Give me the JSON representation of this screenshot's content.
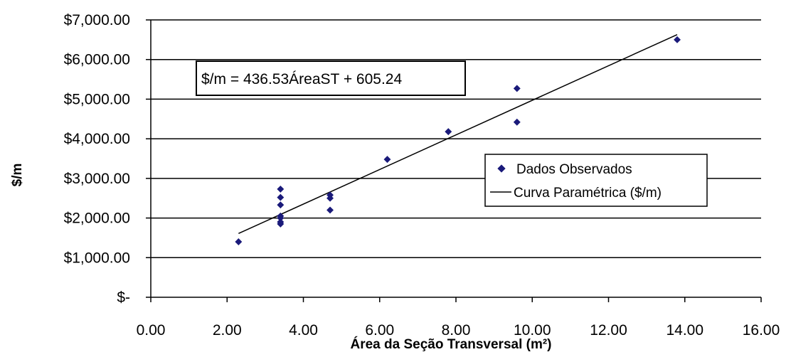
{
  "chart_data": {
    "type": "scatter",
    "title": "",
    "xlabel": "Área da Seção Transversal (m²)",
    "ylabel": "$/m",
    "xlim": [
      0,
      16
    ],
    "ylim": [
      0,
      7000
    ],
    "grid": "horizontal",
    "x_ticks": [
      0,
      2,
      4,
      6,
      8,
      10,
      12,
      14,
      16
    ],
    "x_tick_labels": [
      "0.00",
      "2.00",
      "4.00",
      "6.00",
      "8.00",
      "10.00",
      "12.00",
      "14.00",
      "16.00"
    ],
    "y_ticks": [
      0,
      1000,
      2000,
      3000,
      4000,
      5000,
      6000,
      7000
    ],
    "y_tick_labels": [
      "$-",
      "$1,000.00",
      "$2,000.00",
      "$3,000.00",
      "$4,000.00",
      "$5,000.00",
      "$6,000.00",
      "$7,000.00"
    ],
    "series": [
      {
        "name": "Dados Observados",
        "kind": "scatter",
        "color": "#1a1a7a",
        "points": [
          [
            2.3,
            1400
          ],
          [
            3.4,
            1850
          ],
          [
            3.4,
            1900
          ],
          [
            3.4,
            2000
          ],
          [
            3.4,
            2050
          ],
          [
            3.4,
            2330
          ],
          [
            3.4,
            2520
          ],
          [
            3.4,
            2730
          ],
          [
            4.7,
            2200
          ],
          [
            4.7,
            2500
          ],
          [
            4.7,
            2580
          ],
          [
            6.2,
            3480
          ],
          [
            7.8,
            4180
          ],
          [
            9.6,
            4420
          ],
          [
            9.6,
            5270
          ],
          [
            13.8,
            6500
          ]
        ]
      },
      {
        "name": "Curva Paramétrica ($/m)",
        "kind": "line",
        "color": "#000000",
        "slope": 436.53,
        "intercept": 605.24,
        "x_range": [
          2.3,
          13.8
        ]
      }
    ],
    "legend_position": "right",
    "annotation": "$/m = 436.53ÁreaST + 605.24"
  }
}
